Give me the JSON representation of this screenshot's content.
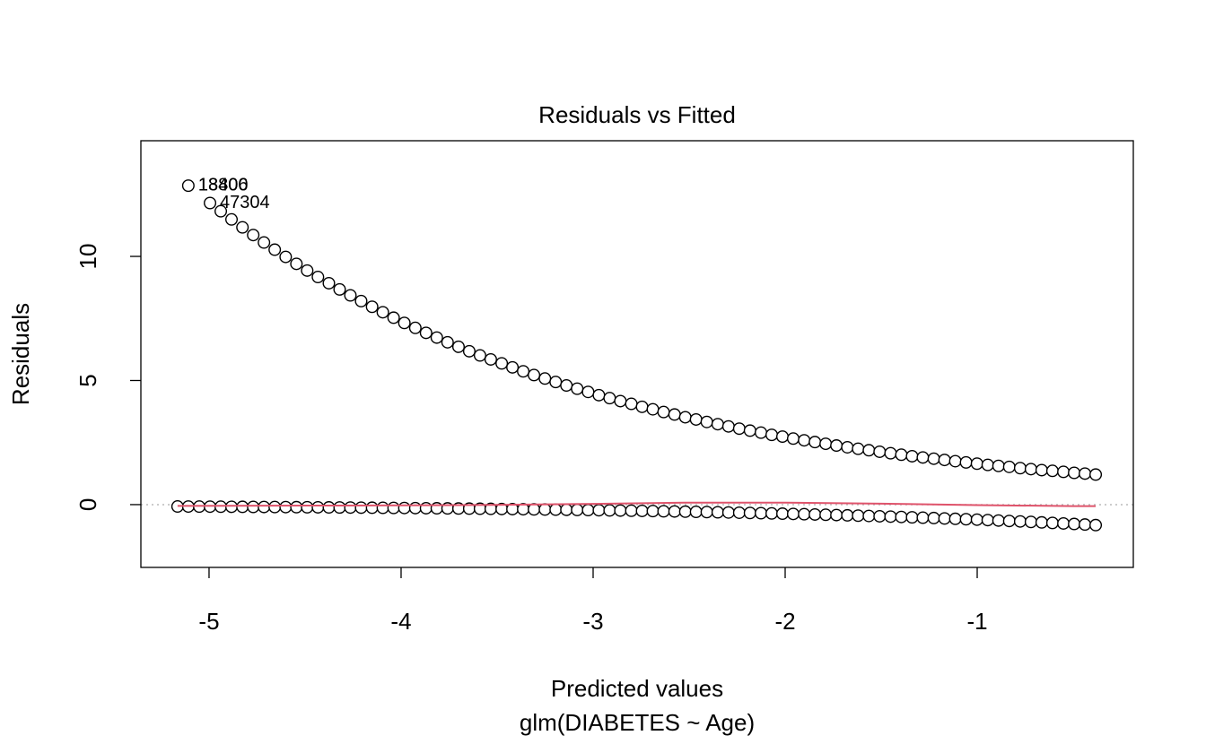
{
  "chart_data": {
    "type": "scatter",
    "title": "Residuals vs Fitted",
    "x_label": "Predicted values",
    "subtitle": "glm(DIABETES ~ Age)",
    "y_label": "Residuals",
    "xlim": [
      -5.355,
      -0.187
    ],
    "ylim": [
      -2.53,
      14.66
    ],
    "xticks": [
      -5,
      -4,
      -3,
      -2,
      -1
    ],
    "yticks": [
      0,
      5,
      10
    ],
    "hline": 0,
    "series": [
      {
        "color": "#000000",
        "x": [
          -5.108,
          -4.995,
          -4.939,
          -4.883,
          -4.826,
          -4.77,
          -4.714,
          -4.658,
          -4.601,
          -4.545,
          -4.489,
          -4.433,
          -4.376,
          -4.32,
          -4.264,
          -4.208,
          -4.151,
          -4.095,
          -4.039,
          -3.983,
          -3.926,
          -3.87,
          -3.814,
          -3.758,
          -3.701,
          -3.645,
          -3.589,
          -3.533,
          -3.476,
          -3.42,
          -3.364,
          -3.308,
          -3.251,
          -3.195,
          -3.139,
          -3.083,
          -3.026,
          -2.97,
          -2.914,
          -2.858,
          -2.801,
          -2.745,
          -2.689,
          -2.633,
          -2.576,
          -2.52,
          -2.464,
          -2.408,
          -2.351,
          -2.295,
          -2.239,
          -2.183,
          -2.126,
          -2.07,
          -2.014,
          -1.958,
          -1.901,
          -1.845,
          -1.789,
          -1.733,
          -1.676,
          -1.62,
          -1.564,
          -1.508,
          -1.451,
          -1.395,
          -1.339,
          -1.283,
          -1.226,
          -1.17,
          -1.114,
          -1.058,
          -1.001,
          -0.945,
          -0.889,
          -0.833,
          -0.776,
          -0.72,
          -0.664,
          -0.608,
          -0.551,
          -0.495,
          -0.439,
          -0.383
        ],
        "values": [
          12.85,
          12.15,
          11.82,
          11.49,
          11.17,
          10.86,
          10.56,
          10.27,
          9.98,
          9.7,
          9.43,
          9.17,
          8.92,
          8.67,
          8.43,
          8.2,
          7.97,
          7.75,
          7.53,
          7.32,
          7.12,
          6.92,
          6.73,
          6.54,
          6.36,
          6.18,
          6.01,
          5.85,
          5.69,
          5.53,
          5.37,
          5.22,
          5.08,
          4.94,
          4.8,
          4.67,
          4.54,
          4.41,
          4.29,
          4.17,
          4.06,
          3.94,
          3.84,
          3.73,
          3.63,
          3.52,
          3.43,
          3.33,
          3.24,
          3.15,
          3.06,
          2.98,
          2.9,
          2.81,
          2.74,
          2.66,
          2.59,
          2.52,
          2.45,
          2.38,
          2.31,
          2.25,
          2.19,
          2.13,
          2.07,
          2.01,
          1.95,
          1.9,
          1.85,
          1.8,
          1.75,
          1.7,
          1.65,
          1.6,
          1.56,
          1.52,
          1.47,
          1.43,
          1.39,
          1.36,
          1.32,
          1.28,
          1.25,
          1.21
        ]
      },
      {
        "color": "#000000",
        "x": [
          -5.164,
          -5.108,
          -5.051,
          -4.995,
          -4.939,
          -4.883,
          -4.826,
          -4.77,
          -4.714,
          -4.658,
          -4.601,
          -4.545,
          -4.489,
          -4.433,
          -4.376,
          -4.32,
          -4.264,
          -4.208,
          -4.151,
          -4.095,
          -4.039,
          -3.983,
          -3.926,
          -3.87,
          -3.814,
          -3.758,
          -3.701,
          -3.645,
          -3.589,
          -3.533,
          -3.476,
          -3.42,
          -3.364,
          -3.308,
          -3.251,
          -3.195,
          -3.139,
          -3.083,
          -3.026,
          -2.97,
          -2.914,
          -2.858,
          -2.801,
          -2.745,
          -2.689,
          -2.633,
          -2.576,
          -2.52,
          -2.464,
          -2.408,
          -2.351,
          -2.295,
          -2.239,
          -2.183,
          -2.126,
          -2.07,
          -2.014,
          -1.958,
          -1.901,
          -1.845,
          -1.789,
          -1.733,
          -1.676,
          -1.62,
          -1.564,
          -1.508,
          -1.451,
          -1.395,
          -1.339,
          -1.283,
          -1.226,
          -1.17,
          -1.114,
          -1.058,
          -1.001,
          -0.945,
          -0.889,
          -0.833,
          -0.776,
          -0.72,
          -0.664,
          -0.608,
          -0.551,
          -0.495,
          -0.439,
          -0.383
        ],
        "values": [
          -0.0756,
          -0.0778,
          -0.08,
          -0.0823,
          -0.0846,
          -0.087,
          -0.0895,
          -0.0921,
          -0.0947,
          -0.0974,
          -0.1002,
          -0.1031,
          -0.106,
          -0.109,
          -0.1121,
          -0.1153,
          -0.1186,
          -0.122,
          -0.1255,
          -0.1291,
          -0.1328,
          -0.1366,
          -0.1405,
          -0.1445,
          -0.1486,
          -0.1528,
          -0.1572,
          -0.1617,
          -0.1663,
          -0.171,
          -0.1759,
          -0.1809,
          -0.1861,
          -0.1914,
          -0.1969,
          -0.2025,
          -0.2083,
          -0.2142,
          -0.2203,
          -0.2266,
          -0.2331,
          -0.2397,
          -0.2465,
          -0.2535,
          -0.2607,
          -0.2681,
          -0.2758,
          -0.2837,
          -0.2918,
          -0.3001,
          -0.3087,
          -0.3175,
          -0.3265,
          -0.3358,
          -0.3454,
          -0.3553,
          -0.3654,
          -0.3758,
          -0.3865,
          -0.3975,
          -0.4088,
          -0.4205,
          -0.4325,
          -0.4448,
          -0.4575,
          -0.4705,
          -0.4839,
          -0.4977,
          -0.5119,
          -0.5265,
          -0.5415,
          -0.5569,
          -0.5728,
          -0.5891,
          -0.6059,
          -0.6232,
          -0.641,
          -0.6593,
          -0.6781,
          -0.6974,
          -0.7173,
          -0.7377,
          -0.7587,
          -0.7803,
          -0.8026,
          -0.8255
        ]
      },
      {
        "type": "line",
        "color": "#df536b",
        "x": [
          -5.164,
          -4.5,
          -4.0,
          -3.5,
          -3.0,
          -2.5,
          -2.0,
          -1.5,
          -1.0,
          -0.5,
          -0.383
        ],
        "values": [
          -0.05,
          -0.04,
          -0.03,
          -0.01,
          0.03,
          0.08,
          0.08,
          0.04,
          -0.02,
          -0.06,
          -0.06
        ]
      }
    ],
    "annotations": [
      {
        "text": "18800",
        "x": -5.108,
        "y": 12.85
      },
      {
        "text": "13406",
        "x": -5.108,
        "y": 12.85
      },
      {
        "text": "47304",
        "x": -4.995,
        "y": 12.15
      }
    ]
  }
}
